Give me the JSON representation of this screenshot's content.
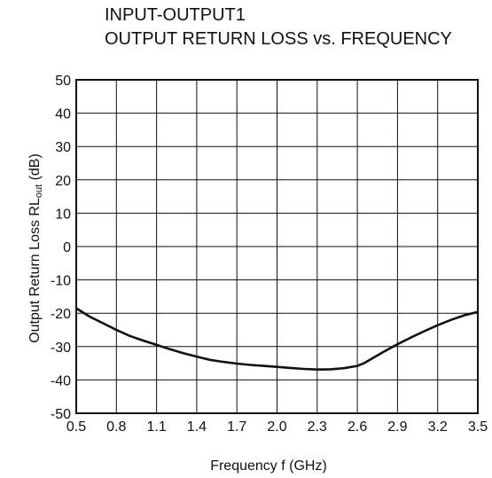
{
  "chart_data": {
    "type": "line",
    "title": "INPUT-OUTPUT1",
    "subtitle": "OUTPUT RETURN LOSS vs. FREQUENCY",
    "xlabel": "Frequency  f (GHz)",
    "ylabel": {
      "main": "Output Return Loss  RL",
      "subscript": "out",
      "unit": " (dB)"
    },
    "xlim": [
      0.5,
      3.5
    ],
    "ylim": [
      -50,
      50
    ],
    "x_ticks": [
      "0.5",
      "0.8",
      "1.1",
      "1.4",
      "1.7",
      "2.0",
      "2.3",
      "2.6",
      "2.9",
      "3.2",
      "3.5"
    ],
    "y_ticks": [
      "50",
      "40",
      "30",
      "20",
      "10",
      "0",
      "-10",
      "-20",
      "-30",
      "-40",
      "-50"
    ],
    "grid": true,
    "series": [
      {
        "x": [
          0.5,
          0.6,
          0.7,
          0.8,
          0.9,
          1.0,
          1.1,
          1.2,
          1.3,
          1.4,
          1.5,
          1.6,
          1.7,
          1.8,
          1.9,
          2.0,
          2.1,
          2.2,
          2.3,
          2.4,
          2.5,
          2.6,
          2.65,
          2.7,
          2.8,
          2.9,
          3.0,
          3.1,
          3.2,
          3.3,
          3.4,
          3.5
        ],
        "y": [
          -18.5,
          -21.0,
          -23.0,
          -25.0,
          -26.8,
          -28.2,
          -29.5,
          -30.8,
          -32.0,
          -33.0,
          -34.0,
          -34.6,
          -35.1,
          -35.5,
          -35.8,
          -36.1,
          -36.4,
          -36.7,
          -36.9,
          -36.8,
          -36.5,
          -35.8,
          -35.0,
          -33.8,
          -31.5,
          -29.3,
          -27.3,
          -25.4,
          -23.6,
          -22.0,
          -20.6,
          -19.6
        ]
      }
    ]
  }
}
